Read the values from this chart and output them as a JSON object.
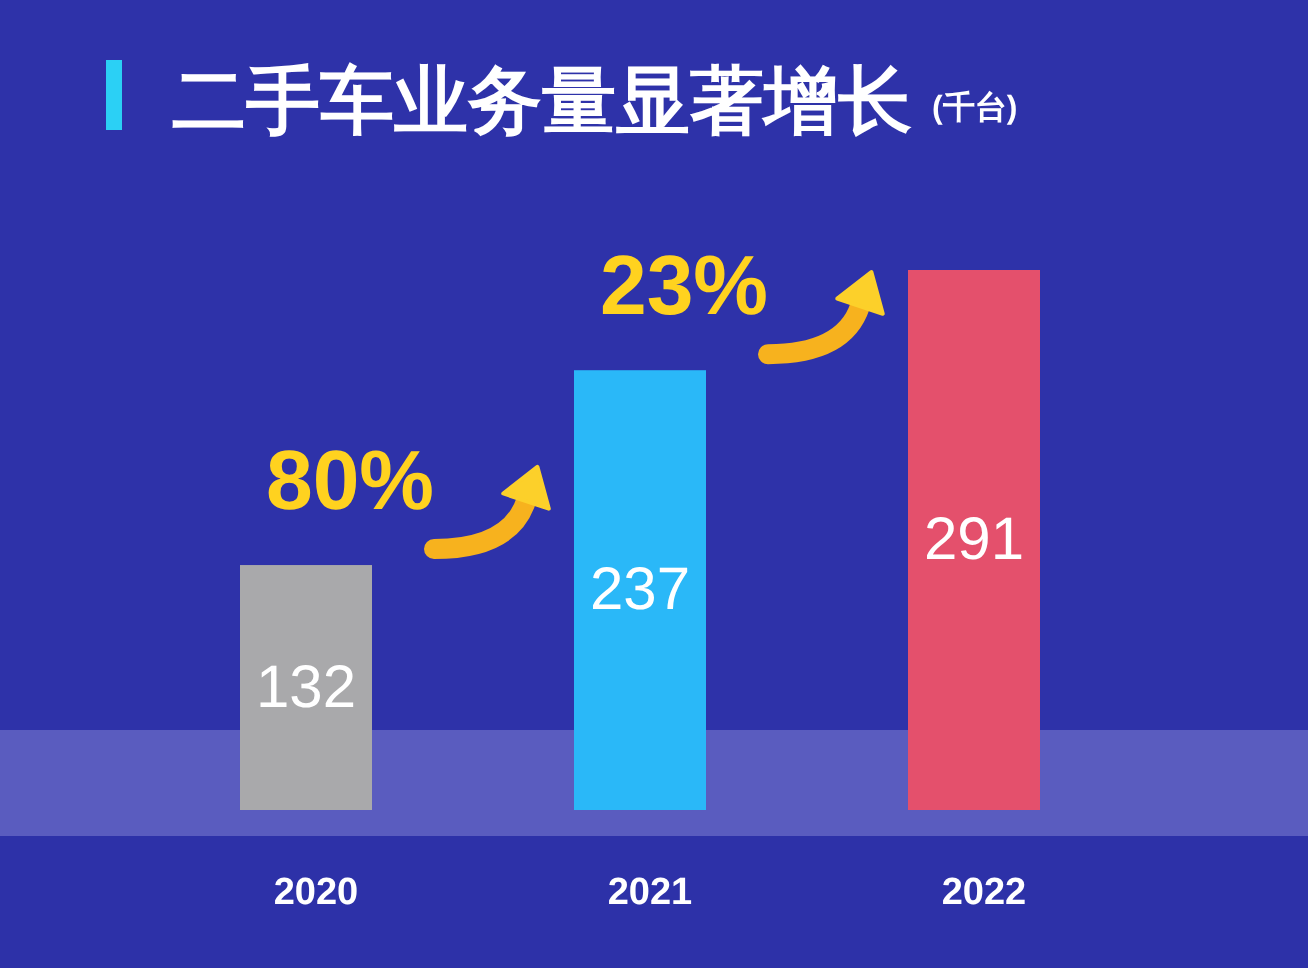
{
  "chart_data": {
    "type": "bar",
    "title": "二手车业务量显著增长",
    "subtitle": "(千台)",
    "categories": [
      "2020",
      "2021",
      "2022"
    ],
    "values": [
      132,
      237,
      291
    ],
    "colors": [
      "#a9a9ab",
      "#2ab8f8",
      "#e4506c"
    ],
    "data_labels": true,
    "annotations": [
      "80%",
      "23%"
    ]
  }
}
